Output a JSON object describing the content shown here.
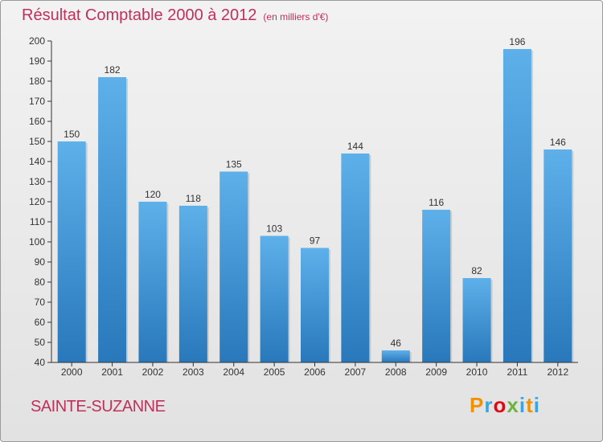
{
  "header": {
    "title": "Résultat Comptable 2000 à 2012",
    "subtitle": "(en milliers d'€)"
  },
  "footer": {
    "commune": "SAINTE-SUZANNE",
    "logo_text": "Proxiti",
    "logo_colors": [
      "#f39200",
      "#3aa6dd",
      "#e30613",
      "#6cb33f",
      "#3aa6dd",
      "#f39200",
      "#3aa6dd"
    ]
  },
  "colors": {
    "bar": "#3d93d8",
    "bar_light": "#5aaee8",
    "bar_dark": "#2a76b8",
    "axis": "#333333",
    "grid_tick": "#555555",
    "title": "#c0305a"
  },
  "chart_data": {
    "type": "bar",
    "categories": [
      "2000",
      "2001",
      "2002",
      "2003",
      "2004",
      "2005",
      "2006",
      "2007",
      "2008",
      "2009",
      "2010",
      "2011",
      "2012"
    ],
    "values": [
      150,
      182,
      120,
      118,
      135,
      103,
      97,
      144,
      46,
      116,
      82,
      196,
      146
    ],
    "title": "Résultat Comptable 2000 à 2012",
    "subtitle": "(en milliers d'€)",
    "xlabel": "",
    "ylabel": "",
    "ylim": [
      40,
      200
    ],
    "ytick_step": 10,
    "grid": false,
    "data_labels": true
  }
}
